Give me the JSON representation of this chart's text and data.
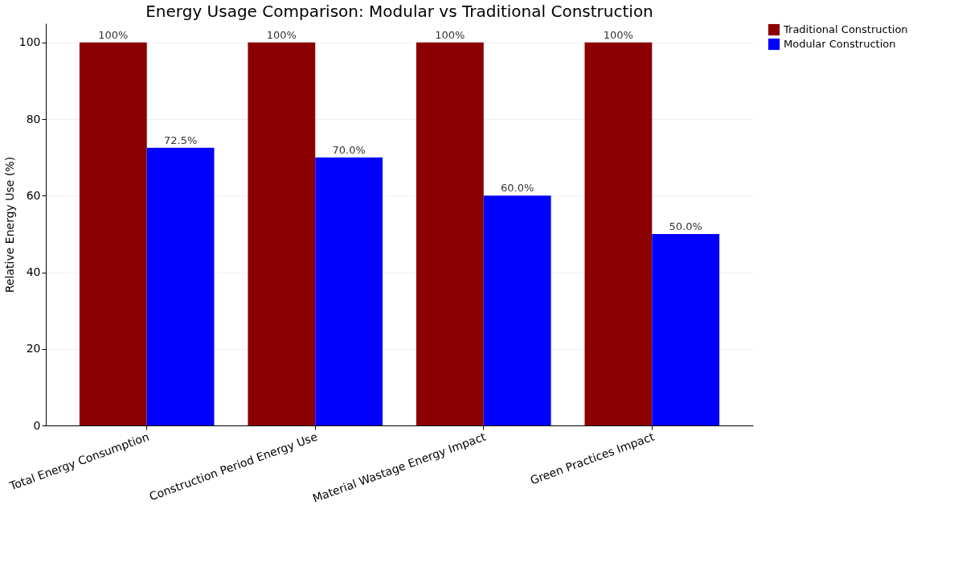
{
  "chart_data": {
    "type": "bar",
    "title": "Energy Usage Comparison: Modular vs Traditional Construction",
    "ylabel": "Relative Energy Use (%)",
    "categories": [
      "Total Energy Consumption",
      "Construction Period Energy Use",
      "Material Wastage Energy Impact",
      "Green Practices Impact"
    ],
    "series": [
      {
        "name": "Traditional Construction",
        "color": "#8b0000",
        "values": [
          100,
          100,
          100,
          100
        ],
        "value_labels": [
          "100%",
          "100%",
          "100%",
          "100%"
        ]
      },
      {
        "name": "Modular Construction",
        "color": "#0000ff",
        "values": [
          72.5,
          70.0,
          60.0,
          50.0
        ],
        "value_labels": [
          "72.5%",
          "70.0%",
          "60.0%",
          "50.0%"
        ]
      }
    ],
    "ylim": [
      0,
      105
    ],
    "yticks": [
      0,
      20,
      40,
      60,
      80,
      100
    ],
    "grid": "y",
    "legend": "top right"
  }
}
